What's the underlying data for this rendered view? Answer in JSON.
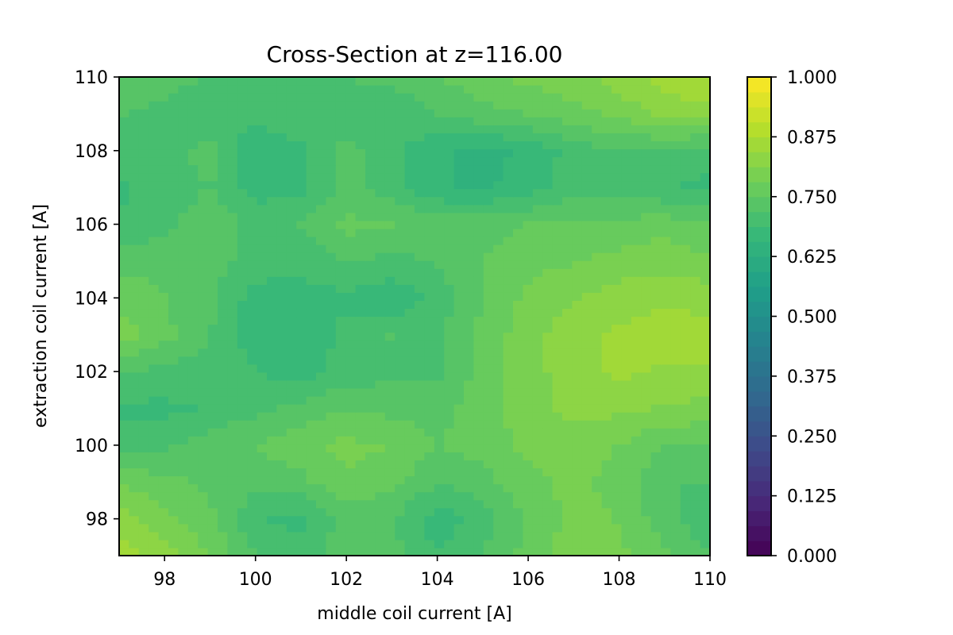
{
  "chart_data": {
    "type": "contourf",
    "title": "Cross-Section at z=116.00",
    "xlabel": "middle coil current [A]",
    "ylabel": "extraction coil current [A]",
    "xlim": [
      97,
      110
    ],
    "ylim": [
      97,
      110
    ],
    "x_ticks": [
      "98",
      "100",
      "102",
      "104",
      "106",
      "108",
      "110"
    ],
    "y_ticks": [
      "98",
      "100",
      "102",
      "104",
      "106",
      "108",
      "110"
    ],
    "colorbar": {
      "colormap": "viridis",
      "range": [
        0,
        1
      ],
      "levels": 32,
      "ticks": [
        "0.000",
        "0.125",
        "0.250",
        "0.375",
        "0.500",
        "0.625",
        "0.750",
        "0.875",
        "1.000"
      ]
    },
    "grid": false,
    "x": [
      97,
      98,
      99,
      100,
      101,
      102,
      103,
      104,
      105,
      106,
      107,
      108,
      109,
      110
    ],
    "y": [
      97,
      98,
      99,
      100,
      101,
      102,
      103,
      104,
      105,
      106,
      107,
      108,
      109,
      110
    ],
    "z": [
      [
        0.86,
        0.83,
        0.78,
        0.72,
        0.7,
        0.74,
        0.73,
        0.69,
        0.72,
        0.76,
        0.8,
        0.79,
        0.76,
        0.72
      ],
      [
        0.83,
        0.79,
        0.76,
        0.69,
        0.68,
        0.73,
        0.72,
        0.67,
        0.7,
        0.76,
        0.79,
        0.78,
        0.73,
        0.69
      ],
      [
        0.78,
        0.76,
        0.74,
        0.73,
        0.74,
        0.78,
        0.76,
        0.72,
        0.74,
        0.77,
        0.79,
        0.77,
        0.72,
        0.72
      ],
      [
        0.7,
        0.71,
        0.74,
        0.75,
        0.77,
        0.79,
        0.78,
        0.75,
        0.76,
        0.79,
        0.8,
        0.78,
        0.75,
        0.75
      ],
      [
        0.68,
        0.68,
        0.69,
        0.71,
        0.73,
        0.75,
        0.74,
        0.74,
        0.77,
        0.8,
        0.82,
        0.82,
        0.81,
        0.8
      ],
      [
        0.72,
        0.71,
        0.7,
        0.69,
        0.67,
        0.7,
        0.71,
        0.71,
        0.76,
        0.8,
        0.83,
        0.85,
        0.84,
        0.84
      ],
      [
        0.8,
        0.76,
        0.72,
        0.67,
        0.66,
        0.7,
        0.72,
        0.71,
        0.76,
        0.8,
        0.83,
        0.85,
        0.86,
        0.86
      ],
      [
        0.77,
        0.75,
        0.73,
        0.67,
        0.67,
        0.68,
        0.66,
        0.7,
        0.75,
        0.79,
        0.81,
        0.83,
        0.84,
        0.83
      ],
      [
        0.74,
        0.74,
        0.73,
        0.71,
        0.7,
        0.72,
        0.71,
        0.72,
        0.75,
        0.77,
        0.78,
        0.79,
        0.8,
        0.79
      ],
      [
        0.69,
        0.71,
        0.74,
        0.71,
        0.72,
        0.76,
        0.75,
        0.74,
        0.74,
        0.75,
        0.76,
        0.76,
        0.77,
        0.75
      ],
      [
        0.68,
        0.7,
        0.72,
        0.67,
        0.68,
        0.73,
        0.7,
        0.66,
        0.65,
        0.67,
        0.71,
        0.7,
        0.69,
        0.68
      ],
      [
        0.7,
        0.71,
        0.73,
        0.66,
        0.68,
        0.73,
        0.7,
        0.66,
        0.65,
        0.66,
        0.7,
        0.72,
        0.71,
        0.7
      ],
      [
        0.72,
        0.71,
        0.69,
        0.7,
        0.71,
        0.7,
        0.69,
        0.72,
        0.74,
        0.75,
        0.77,
        0.79,
        0.82,
        0.83
      ],
      [
        0.74,
        0.73,
        0.72,
        0.7,
        0.71,
        0.72,
        0.73,
        0.75,
        0.77,
        0.79,
        0.8,
        0.83,
        0.86,
        0.88
      ]
    ]
  }
}
